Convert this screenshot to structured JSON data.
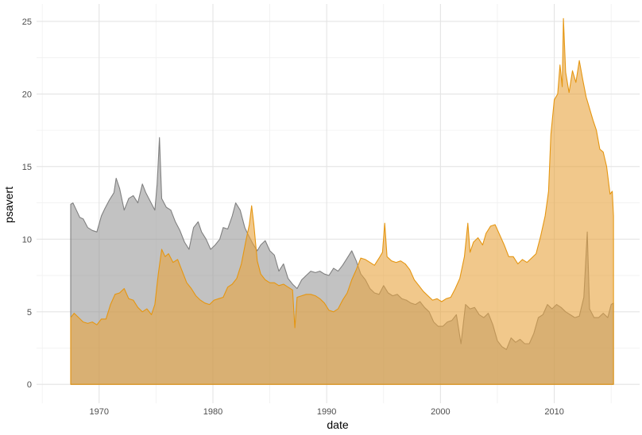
{
  "chart_data": {
    "type": "area",
    "xlabel": "date",
    "ylabel": "psavert",
    "xlim": [
      1964.5,
      2017.5
    ],
    "ylim": [
      -1.3,
      26.2
    ],
    "x_ticks": [
      1970,
      1980,
      1990,
      2000,
      2010
    ],
    "y_ticks": [
      0,
      5,
      10,
      15,
      20,
      25
    ],
    "grid": true,
    "legend": "none",
    "series": [
      {
        "color": "#808080",
        "fill": "#999999",
        "points": [
          [
            1967.5,
            12.4
          ],
          [
            1967.7,
            12.5
          ],
          [
            1968.0,
            12.0
          ],
          [
            1968.3,
            11.5
          ],
          [
            1968.6,
            11.4
          ],
          [
            1969.0,
            10.8
          ],
          [
            1969.4,
            10.6
          ],
          [
            1969.8,
            10.5
          ],
          [
            1970.2,
            11.6
          ],
          [
            1970.5,
            12.1
          ],
          [
            1970.9,
            12.7
          ],
          [
            1971.3,
            13.2
          ],
          [
            1971.5,
            14.2
          ],
          [
            1971.8,
            13.5
          ],
          [
            1972.2,
            12.0
          ],
          [
            1972.6,
            12.8
          ],
          [
            1973.0,
            13.0
          ],
          [
            1973.4,
            12.5
          ],
          [
            1973.8,
            13.8
          ],
          [
            1974.1,
            13.2
          ],
          [
            1974.5,
            12.6
          ],
          [
            1974.9,
            12.0
          ],
          [
            1975.1,
            13.8
          ],
          [
            1975.3,
            17.0
          ],
          [
            1975.5,
            12.8
          ],
          [
            1975.9,
            12.2
          ],
          [
            1976.3,
            12.0
          ],
          [
            1976.7,
            11.2
          ],
          [
            1977.1,
            10.6
          ],
          [
            1977.5,
            9.8
          ],
          [
            1977.9,
            9.3
          ],
          [
            1978.3,
            10.8
          ],
          [
            1978.7,
            11.2
          ],
          [
            1979.0,
            10.5
          ],
          [
            1979.4,
            10.0
          ],
          [
            1979.8,
            9.3
          ],
          [
            1980.2,
            9.6
          ],
          [
            1980.6,
            10.0
          ],
          [
            1980.9,
            10.8
          ],
          [
            1981.3,
            10.7
          ],
          [
            1981.7,
            11.6
          ],
          [
            1982.0,
            12.5
          ],
          [
            1982.4,
            12.0
          ],
          [
            1982.8,
            10.8
          ],
          [
            1983.1,
            10.3
          ],
          [
            1983.5,
            9.7
          ],
          [
            1983.9,
            9.2
          ],
          [
            1984.2,
            9.6
          ],
          [
            1984.6,
            9.9
          ],
          [
            1985.0,
            9.2
          ],
          [
            1985.4,
            8.9
          ],
          [
            1985.8,
            7.8
          ],
          [
            1986.2,
            8.3
          ],
          [
            1986.6,
            7.3
          ],
          [
            1987.0,
            6.9
          ],
          [
            1987.4,
            6.6
          ],
          [
            1987.8,
            7.2
          ],
          [
            1988.2,
            7.5
          ],
          [
            1988.6,
            7.8
          ],
          [
            1989.0,
            7.7
          ],
          [
            1989.4,
            7.8
          ],
          [
            1989.8,
            7.6
          ],
          [
            1990.2,
            7.5
          ],
          [
            1990.6,
            8.0
          ],
          [
            1991.0,
            7.8
          ],
          [
            1991.4,
            8.2
          ],
          [
            1991.8,
            8.7
          ],
          [
            1992.2,
            9.2
          ],
          [
            1992.6,
            8.5
          ],
          [
            1993.0,
            7.6
          ],
          [
            1993.4,
            7.2
          ],
          [
            1993.8,
            6.6
          ],
          [
            1994.2,
            6.3
          ],
          [
            1994.6,
            6.2
          ],
          [
            1995.0,
            6.8
          ],
          [
            1995.4,
            6.3
          ],
          [
            1995.8,
            6.1
          ],
          [
            1996.2,
            6.2
          ],
          [
            1996.6,
            5.9
          ],
          [
            1997.0,
            5.8
          ],
          [
            1997.4,
            5.6
          ],
          [
            1997.8,
            5.5
          ],
          [
            1998.2,
            5.7
          ],
          [
            1998.6,
            5.3
          ],
          [
            1999.0,
            5.0
          ],
          [
            1999.4,
            4.3
          ],
          [
            1999.8,
            4.0
          ],
          [
            2000.2,
            4.0
          ],
          [
            2000.6,
            4.3
          ],
          [
            2001.0,
            4.4
          ],
          [
            2001.4,
            4.8
          ],
          [
            2001.8,
            2.8
          ],
          [
            2002.2,
            5.5
          ],
          [
            2002.6,
            5.2
          ],
          [
            2003.0,
            5.3
          ],
          [
            2003.4,
            4.8
          ],
          [
            2003.8,
            4.6
          ],
          [
            2004.2,
            4.9
          ],
          [
            2004.6,
            4.1
          ],
          [
            2005.0,
            3.0
          ],
          [
            2005.4,
            2.6
          ],
          [
            2005.8,
            2.4
          ],
          [
            2006.2,
            3.2
          ],
          [
            2006.6,
            2.9
          ],
          [
            2007.0,
            3.1
          ],
          [
            2007.4,
            2.8
          ],
          [
            2007.8,
            2.8
          ],
          [
            2008.2,
            3.5
          ],
          [
            2008.6,
            4.6
          ],
          [
            2009.0,
            4.8
          ],
          [
            2009.4,
            5.5
          ],
          [
            2009.8,
            5.2
          ],
          [
            2010.2,
            5.5
          ],
          [
            2010.6,
            5.3
          ],
          [
            2011.0,
            5.0
          ],
          [
            2011.4,
            4.8
          ],
          [
            2011.8,
            4.6
          ],
          [
            2012.2,
            4.7
          ],
          [
            2012.6,
            6.0
          ],
          [
            2012.9,
            10.5
          ],
          [
            2013.1,
            5.2
          ],
          [
            2013.5,
            4.6
          ],
          [
            2013.9,
            4.6
          ],
          [
            2014.3,
            4.9
          ],
          [
            2014.7,
            4.6
          ],
          [
            2015.0,
            5.5
          ],
          [
            2015.2,
            5.6
          ]
        ]
      },
      {
        "color": "#e59611",
        "fill": "#e8a33d",
        "points": [
          [
            1967.5,
            4.6
          ],
          [
            1967.8,
            4.9
          ],
          [
            1968.2,
            4.6
          ],
          [
            1968.6,
            4.3
          ],
          [
            1969.0,
            4.2
          ],
          [
            1969.4,
            4.3
          ],
          [
            1969.8,
            4.1
          ],
          [
            1970.2,
            4.5
          ],
          [
            1970.6,
            4.5
          ],
          [
            1971.0,
            5.5
          ],
          [
            1971.4,
            6.2
          ],
          [
            1971.8,
            6.3
          ],
          [
            1972.2,
            6.6
          ],
          [
            1972.6,
            5.9
          ],
          [
            1973.0,
            5.8
          ],
          [
            1973.4,
            5.3
          ],
          [
            1973.8,
            5.0
          ],
          [
            1974.2,
            5.2
          ],
          [
            1974.6,
            4.8
          ],
          [
            1974.9,
            5.5
          ],
          [
            1975.2,
            7.6
          ],
          [
            1975.5,
            9.3
          ],
          [
            1975.8,
            8.8
          ],
          [
            1976.1,
            9.0
          ],
          [
            1976.5,
            8.4
          ],
          [
            1976.9,
            8.6
          ],
          [
            1977.3,
            7.8
          ],
          [
            1977.7,
            7.0
          ],
          [
            1978.1,
            6.6
          ],
          [
            1978.5,
            6.1
          ],
          [
            1978.9,
            5.8
          ],
          [
            1979.3,
            5.6
          ],
          [
            1979.7,
            5.5
          ],
          [
            1980.1,
            5.8
          ],
          [
            1980.5,
            5.9
          ],
          [
            1980.9,
            6.0
          ],
          [
            1981.3,
            6.7
          ],
          [
            1981.7,
            6.9
          ],
          [
            1982.1,
            7.3
          ],
          [
            1982.5,
            8.3
          ],
          [
            1982.9,
            9.9
          ],
          [
            1983.2,
            11.0
          ],
          [
            1983.4,
            12.3
          ],
          [
            1983.6,
            11.0
          ],
          [
            1983.9,
            8.5
          ],
          [
            1984.2,
            7.6
          ],
          [
            1984.6,
            7.2
          ],
          [
            1985.0,
            7.0
          ],
          [
            1985.4,
            7.0
          ],
          [
            1985.8,
            6.8
          ],
          [
            1986.2,
            6.9
          ],
          [
            1986.6,
            6.7
          ],
          [
            1987.0,
            6.5
          ],
          [
            1987.2,
            3.9
          ],
          [
            1987.4,
            6.0
          ],
          [
            1987.8,
            6.1
          ],
          [
            1988.2,
            6.2
          ],
          [
            1988.6,
            6.2
          ],
          [
            1989.0,
            6.1
          ],
          [
            1989.4,
            5.9
          ],
          [
            1989.8,
            5.6
          ],
          [
            1990.2,
            5.1
          ],
          [
            1990.6,
            5.0
          ],
          [
            1991.0,
            5.2
          ],
          [
            1991.4,
            5.8
          ],
          [
            1991.8,
            6.3
          ],
          [
            1992.2,
            7.2
          ],
          [
            1992.6,
            7.9
          ],
          [
            1993.0,
            8.7
          ],
          [
            1993.4,
            8.6
          ],
          [
            1993.8,
            8.4
          ],
          [
            1994.2,
            8.2
          ],
          [
            1994.6,
            8.7
          ],
          [
            1994.9,
            9.1
          ],
          [
            1995.1,
            11.1
          ],
          [
            1995.3,
            8.8
          ],
          [
            1995.7,
            8.5
          ],
          [
            1996.1,
            8.4
          ],
          [
            1996.5,
            8.5
          ],
          [
            1996.9,
            8.3
          ],
          [
            1997.3,
            7.9
          ],
          [
            1997.7,
            7.2
          ],
          [
            1998.1,
            6.8
          ],
          [
            1998.5,
            6.4
          ],
          [
            1998.9,
            6.1
          ],
          [
            1999.3,
            5.8
          ],
          [
            1999.7,
            5.9
          ],
          [
            2000.1,
            5.7
          ],
          [
            2000.5,
            5.9
          ],
          [
            2000.9,
            6.0
          ],
          [
            2001.3,
            6.6
          ],
          [
            2001.7,
            7.3
          ],
          [
            2002.1,
            8.8
          ],
          [
            2002.4,
            11.1
          ],
          [
            2002.6,
            9.1
          ],
          [
            2002.9,
            9.8
          ],
          [
            2003.3,
            10.1
          ],
          [
            2003.7,
            9.6
          ],
          [
            2004.0,
            10.4
          ],
          [
            2004.4,
            10.9
          ],
          [
            2004.8,
            11.0
          ],
          [
            2005.2,
            10.3
          ],
          [
            2005.6,
            9.6
          ],
          [
            2006.0,
            8.8
          ],
          [
            2006.4,
            8.8
          ],
          [
            2006.8,
            8.3
          ],
          [
            2007.2,
            8.6
          ],
          [
            2007.6,
            8.4
          ],
          [
            2008.0,
            8.7
          ],
          [
            2008.4,
            9.0
          ],
          [
            2008.8,
            10.2
          ],
          [
            2009.2,
            11.6
          ],
          [
            2009.5,
            13.3
          ],
          [
            2009.7,
            17.2
          ],
          [
            2010.0,
            19.6
          ],
          [
            2010.3,
            20.0
          ],
          [
            2010.5,
            22.0
          ],
          [
            2010.7,
            20.5
          ],
          [
            2010.8,
            25.2
          ],
          [
            2011.0,
            21.5
          ],
          [
            2011.3,
            20.1
          ],
          [
            2011.6,
            21.6
          ],
          [
            2011.9,
            20.8
          ],
          [
            2012.2,
            22.3
          ],
          [
            2012.5,
            21.0
          ],
          [
            2012.8,
            19.8
          ],
          [
            2013.1,
            19.0
          ],
          [
            2013.4,
            18.2
          ],
          [
            2013.7,
            17.5
          ],
          [
            2014.0,
            16.2
          ],
          [
            2014.3,
            16.0
          ],
          [
            2014.6,
            15.0
          ],
          [
            2014.9,
            13.1
          ],
          [
            2015.1,
            13.3
          ],
          [
            2015.2,
            11.6
          ]
        ]
      }
    ]
  }
}
